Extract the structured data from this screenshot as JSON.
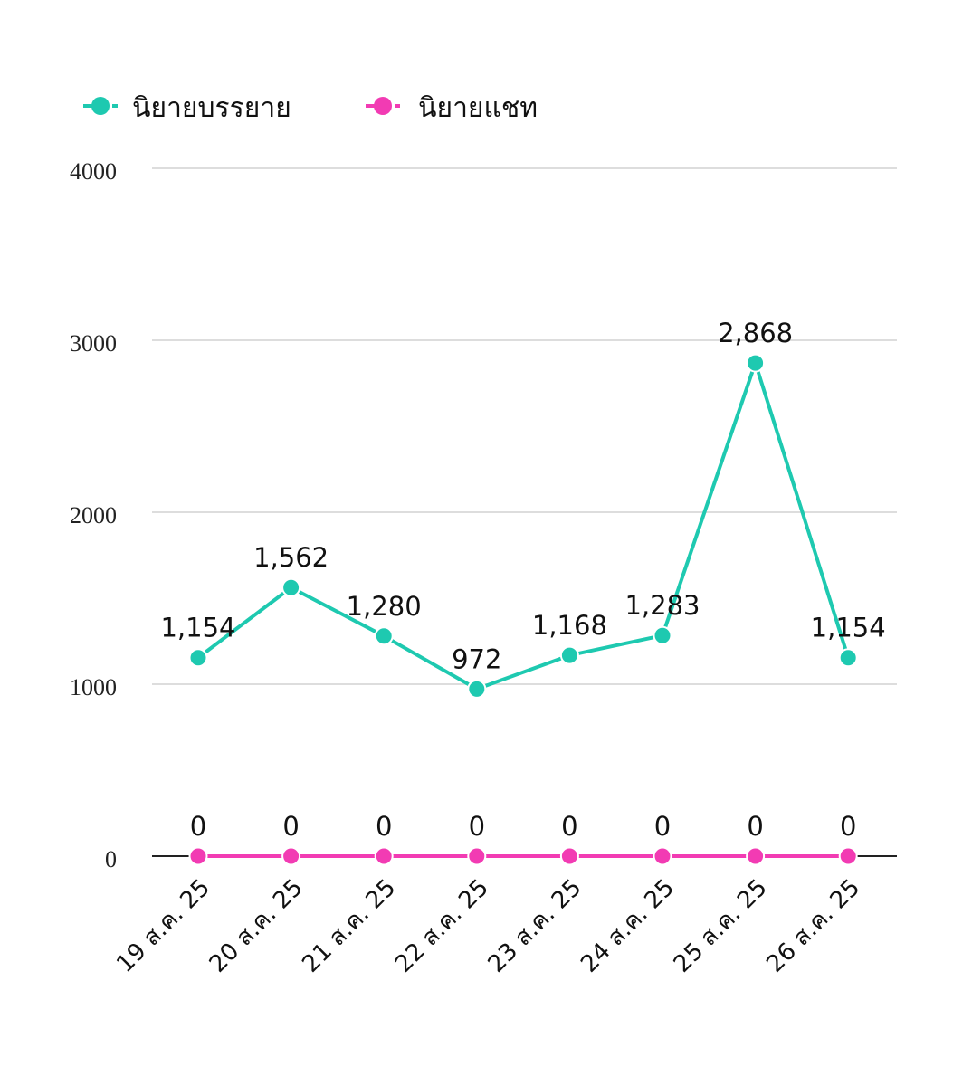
{
  "chart_data": {
    "type": "line",
    "categories": [
      "19 ส.ค. 25",
      "20 ส.ค. 25",
      "21 ส.ค. 25",
      "22 ส.ค. 25",
      "23 ส.ค. 25",
      "24 ส.ค. 25",
      "25 ส.ค. 25",
      "26 ส.ค. 25"
    ],
    "series": [
      {
        "name": "นิยายบรรยาย",
        "color": "#1ec9b0",
        "values": [
          1154,
          1562,
          1280,
          972,
          1168,
          1283,
          2868,
          1154
        ],
        "labels": [
          "1,154",
          "1,562",
          "1,280",
          "972",
          "1,168",
          "1,283",
          "2,868",
          "1,154"
        ]
      },
      {
        "name": "นิยายแชท",
        "color": "#f23bb3",
        "values": [
          0,
          0,
          0,
          0,
          0,
          0,
          0,
          0
        ],
        "labels": [
          "0",
          "0",
          "0",
          "0",
          "0",
          "0",
          "0",
          "0"
        ]
      }
    ],
    "yticks": [
      "0",
      "1000",
      "2000",
      "3000",
      "4000"
    ],
    "ylim": [
      0,
      4000
    ],
    "grid": true,
    "legend": "top-left",
    "title": "",
    "xlabel": "",
    "ylabel": ""
  }
}
